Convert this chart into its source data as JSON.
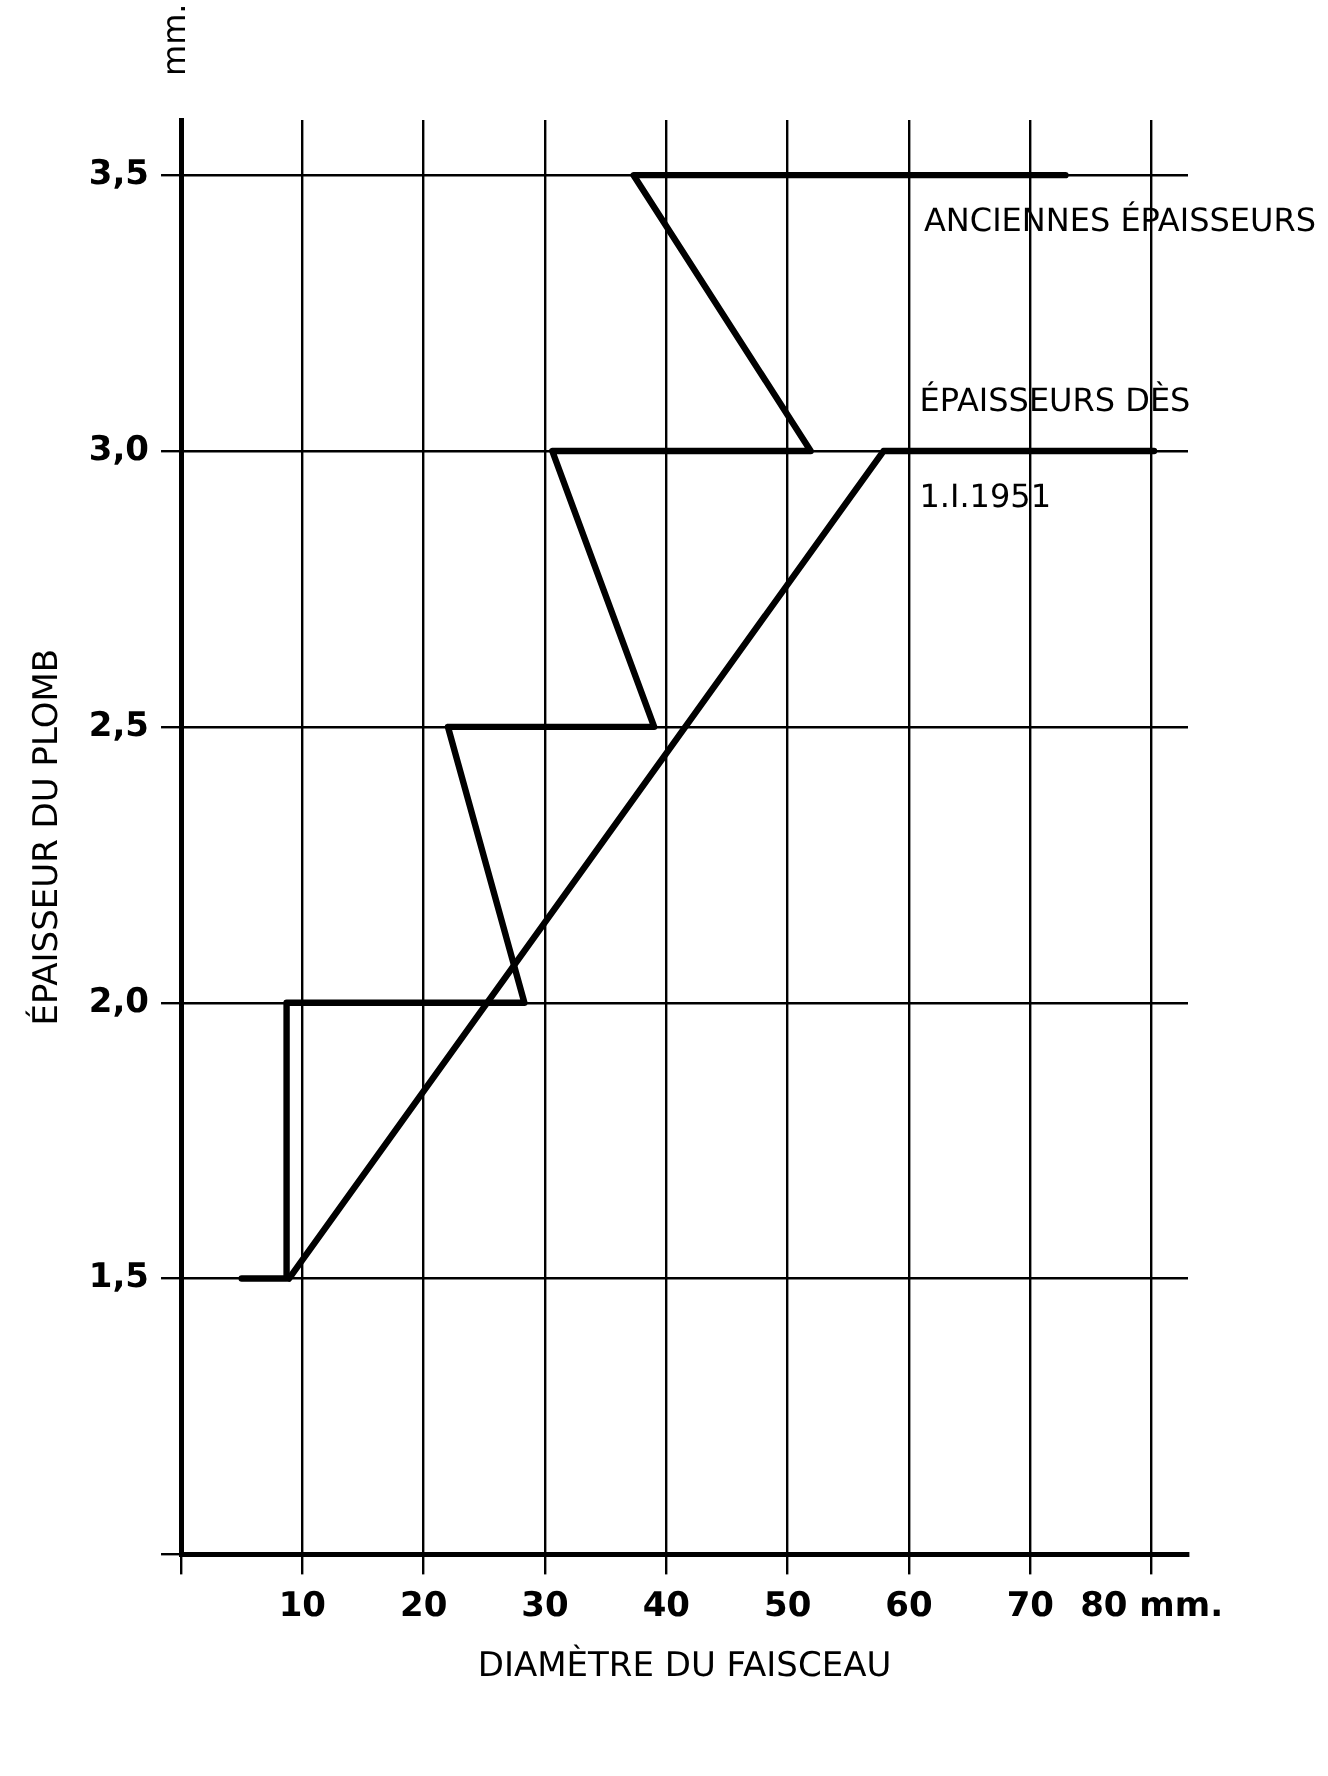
{
  "chart_data": {
    "type": "line",
    "xlabel": "DIAMÈTRE DU FAISCEAU",
    "ylabel": "ÉPAISSEUR DU PLOMB",
    "annotations": [
      "mm."
    ],
    "xlim": [
      0,
      83
    ],
    "ylim": [
      1.0,
      3.6
    ],
    "xticks": [
      {
        "value": 0,
        "label": null
      },
      10,
      20,
      30,
      40,
      50,
      60,
      70,
      {
        "value": 80,
        "label": "80 mm."
      }
    ],
    "yticks": [
      {
        "value": 1.0,
        "label": null
      },
      {
        "value": 1.5,
        "label": "1,5"
      },
      {
        "value": 2.0,
        "label": "2,0"
      },
      {
        "value": 2.5,
        "label": "2,5"
      },
      {
        "value": 3.0,
        "label": "3,0"
      },
      {
        "value": 3.5,
        "label": "3,5"
      }
    ],
    "grid": true,
    "legend": false,
    "marker": "none",
    "line_style": "solid",
    "series": [
      {
        "name": "ANCIENNES ÉPAISSEURS",
        "color": "#000000",
        "x": [
          5.0,
          8.7,
          8.7,
          28.3,
          22.0,
          39.0,
          30.6,
          51.9,
          37.3,
          72.9
        ],
        "values": [
          1.5,
          1.5,
          2.0,
          2.0,
          2.5,
          2.5,
          3.0,
          3.0,
          3.5,
          3.5
        ]
      },
      {
        "name": "ÉPAISSEURS DÈS 1.I.1951",
        "color": "#000000",
        "x": [
          8.9,
          57.9,
          80.2
        ],
        "values": [
          1.5,
          3.0,
          3.0
        ]
      }
    ]
  }
}
